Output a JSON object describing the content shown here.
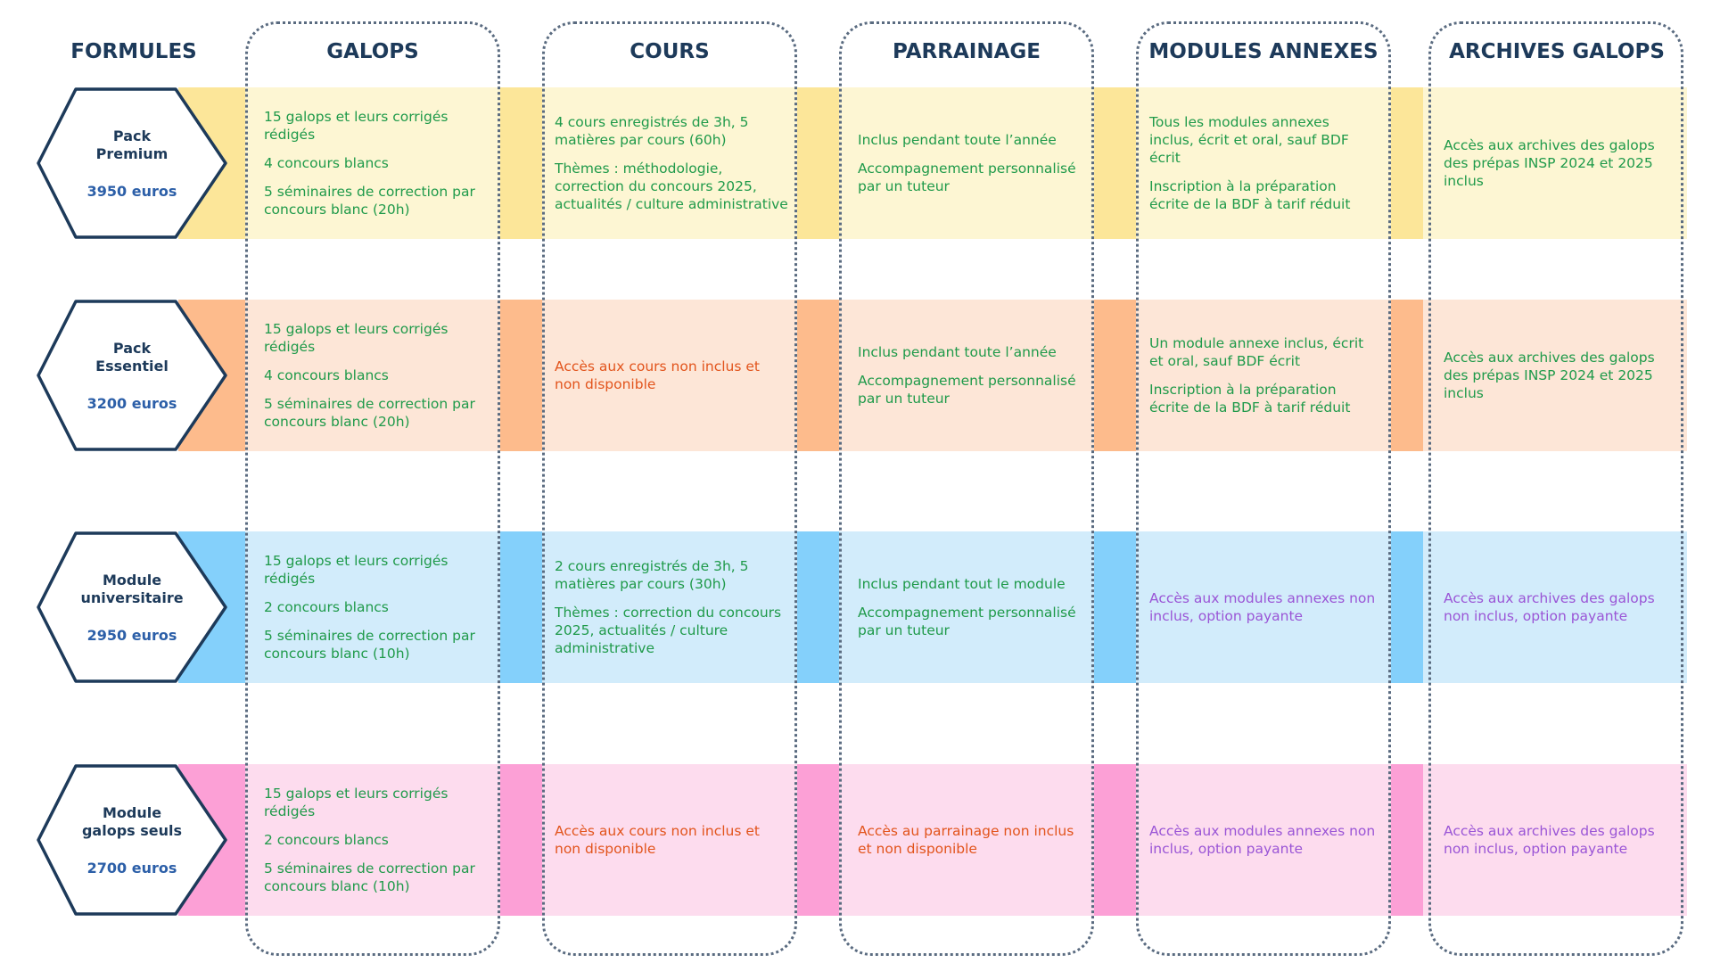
{
  "headers": {
    "formules": "FORMULES",
    "galops": "GALOPS",
    "cours": "COURS",
    "parrainage": "PARRAINAGE",
    "modules": "MODULES ANNEXES",
    "archives": "ARCHIVES GALOPS"
  },
  "colors": {
    "navy": "#1d3a5a",
    "price_blue": "#2c5fa8",
    "text_green": "#1f9a4a",
    "text_orange": "#e2541c",
    "text_purple": "#9a55d6",
    "outline": "#5a6b80"
  },
  "rows": [
    {
      "name": "Pack\nPremium",
      "price": "3950 euros",
      "light": "#fdf6d3",
      "accent": "#fce699",
      "galops": [
        "15 galops et leurs corrigés rédigés",
        "4 concours blancs",
        "5 séminaires de correction par concours blanc (20h)"
      ],
      "cours": [
        "4 cours enregistrés de 3h, 5 matières par cours (60h)",
        "Thèmes : méthodologie, correction du concours 2025, actualités / culture administrative"
      ],
      "cours_color": "green",
      "parrainage": [
        "Inclus pendant toute l’année",
        "Accompagnement personnalisé par un tuteur"
      ],
      "parrainage_color": "green",
      "modules": [
        "Tous les modules annexes inclus, écrit et oral, sauf BDF écrit",
        "Inscription à la préparation écrite de la BDF à tarif réduit"
      ],
      "modules_color": "green",
      "archives": [
        "Accès aux archives des galops des prépas INSP 2024 et 2025 inclus"
      ],
      "archives_color": "green"
    },
    {
      "name": "Pack\nEssentiel",
      "price": "3200 euros",
      "light": "#fde6d7",
      "accent": "#fdbb8c",
      "galops": [
        "15 galops et leurs corrigés rédigés",
        "4 concours blancs",
        "5 séminaires de correction par concours blanc (20h)"
      ],
      "cours": [
        "Accès aux cours non inclus et non disponible"
      ],
      "cours_color": "orange",
      "parrainage": [
        "Inclus pendant toute l’année",
        "Accompagnement personnalisé par un tuteur"
      ],
      "parrainage_color": "green",
      "modules": [
        "Un module annexe inclus, écrit et oral, sauf BDF écrit",
        "Inscription à la préparation écrite de la BDF à tarif réduit"
      ],
      "modules_color": "green",
      "archives": [
        "Accès aux archives des galops des prépas INSP 2024 et 2025 inclus"
      ],
      "archives_color": "green"
    },
    {
      "name": "Module\nuniversitaire",
      "price": "2950 euros",
      "light": "#d2ecfb",
      "accent": "#84d0fb",
      "galops": [
        "15 galops et leurs corrigés rédigés",
        "2 concours blancs",
        "5 séminaires de correction par concours blanc (10h)"
      ],
      "cours": [
        "2 cours enregistrés de 3h, 5 matières par cours (30h)",
        "Thèmes : correction du concours 2025, actualités / culture administrative"
      ],
      "cours_color": "green",
      "parrainage": [
        "Inclus pendant tout le module",
        "Accompagnement personnalisé par un tuteur"
      ],
      "parrainage_color": "green",
      "modules": [
        "Accès aux modules annexes non inclus, option payante"
      ],
      "modules_color": "purple",
      "archives": [
        "Accès aux archives des galops non inclus, option payante"
      ],
      "archives_color": "purple"
    },
    {
      "name": "Module\ngalops seuls",
      "price": "2700 euros",
      "light": "#fddcee",
      "accent": "#fca0d6",
      "galops": [
        "15 galops et leurs corrigés rédigés",
        "2 concours blancs",
        "5 séminaires de correction par concours blanc (10h)"
      ],
      "cours": [
        "Accès aux cours non inclus et non disponible"
      ],
      "cours_color": "orange",
      "parrainage": [
        "Accès au parrainage non inclus et non disponible"
      ],
      "parrainage_color": "orange",
      "modules": [
        "Accès aux modules annexes non inclus, option payante"
      ],
      "modules_color": "purple",
      "archives": [
        "Accès aux archives des galops non inclus, option payante"
      ],
      "archives_color": "purple"
    }
  ]
}
